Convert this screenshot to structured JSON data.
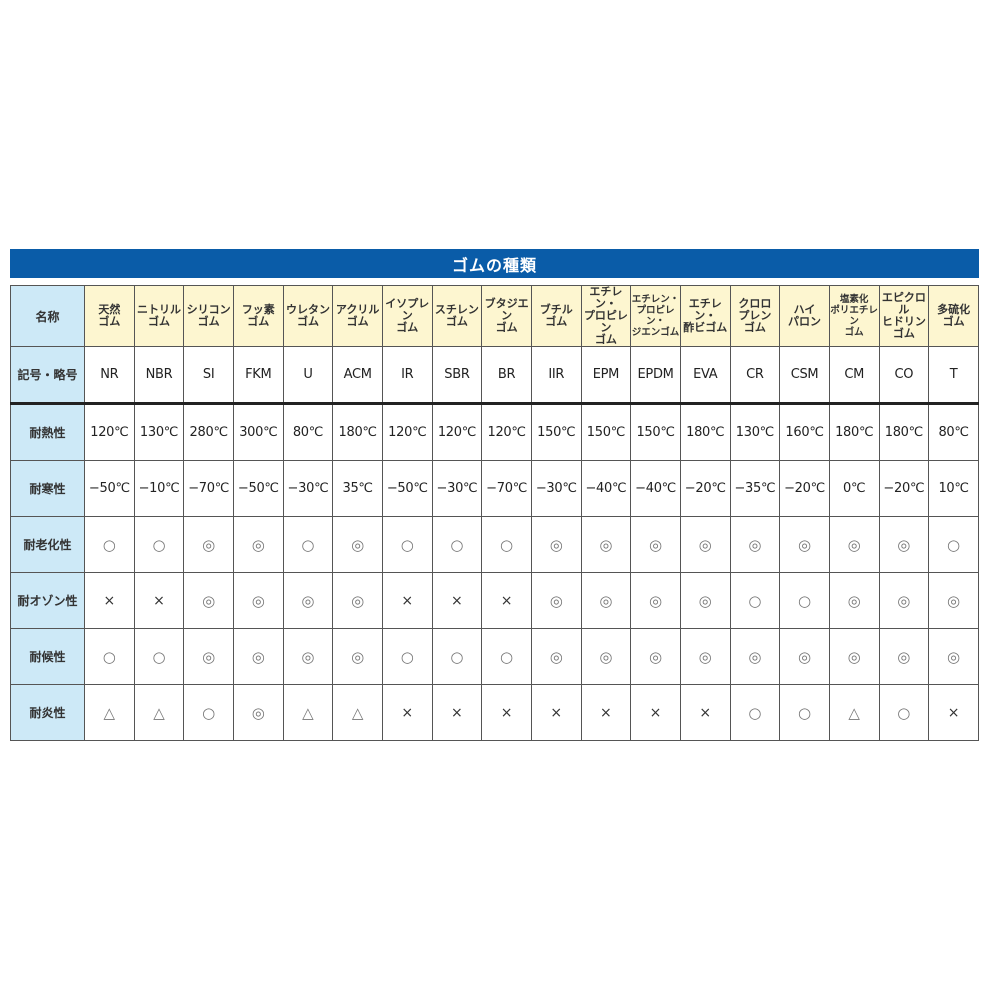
{
  "title": "ゴムの種類",
  "colors": {
    "title_bar": "#0a5ca8",
    "label_bg": "#cde9f7",
    "header_bg": "#fdf6d0"
  },
  "table": {
    "rows": [
      {
        "label": "名称",
        "type": "names",
        "values": [
          "天然\nゴム",
          "ニトリル\nゴム",
          "シリコン\nゴム",
          "フッ素\nゴム",
          "ウレタン\nゴム",
          "アクリル\nゴム",
          "イソプレン\nゴム",
          "スチレン\nゴム",
          "ブタジエン\nゴム",
          "ブチル\nゴム",
          "エチレン・\nプロピレン\nゴム",
          "エチレン・\nプロピレン・\nジエンゴム",
          "エチレン・\n酢ビゴム",
          "クロロ\nプレン\nゴム",
          "ハイ\nパロン",
          "塩素化\nポリエチレン\nゴム",
          "エピクロル\nヒドリン\nゴム",
          "多硫化\nゴム"
        ]
      },
      {
        "label": "記号・略号",
        "type": "val",
        "values": [
          "NR",
          "NBR",
          "SI",
          "FKM",
          "U",
          "ACM",
          "IR",
          "SBR",
          "BR",
          "IIR",
          "EPM",
          "EPDM",
          "EVA",
          "CR",
          "CSM",
          "CM",
          "CO",
          "T"
        ]
      },
      {
        "label": "耐熱性",
        "type": "val",
        "values": [
          "120℃",
          "130℃",
          "280℃",
          "300℃",
          "80℃",
          "180℃",
          "120℃",
          "120℃",
          "120℃",
          "150℃",
          "150℃",
          "150℃",
          "180℃",
          "130℃",
          "160℃",
          "180℃",
          "180℃",
          "80℃"
        ]
      },
      {
        "label": "耐寒性",
        "type": "val",
        "values": [
          "−50℃",
          "−10℃",
          "−70℃",
          "−50℃",
          "−30℃",
          "35℃",
          "−50℃",
          "−30℃",
          "−70℃",
          "−30℃",
          "−40℃",
          "−40℃",
          "−20℃",
          "−35℃",
          "−20℃",
          "0℃",
          "−20℃",
          "10℃"
        ]
      },
      {
        "label": "耐老化性",
        "type": "sym",
        "values": [
          "○",
          "○",
          "◎",
          "◎",
          "○",
          "◎",
          "○",
          "○",
          "○",
          "◎",
          "◎",
          "◎",
          "◎",
          "◎",
          "◎",
          "◎",
          "◎",
          "○"
        ]
      },
      {
        "label": "耐オゾン性",
        "type": "sym",
        "values": [
          "×",
          "×",
          "◎",
          "◎",
          "◎",
          "◎",
          "×",
          "×",
          "×",
          "◎",
          "◎",
          "◎",
          "◎",
          "○",
          "○",
          "◎",
          "◎",
          "◎"
        ]
      },
      {
        "label": "耐候性",
        "type": "sym",
        "values": [
          "○",
          "○",
          "◎",
          "◎",
          "◎",
          "◎",
          "○",
          "○",
          "○",
          "◎",
          "◎",
          "◎",
          "◎",
          "◎",
          "◎",
          "◎",
          "◎",
          "◎"
        ]
      },
      {
        "label": "耐炎性",
        "type": "sym",
        "values": [
          "△",
          "△",
          "○",
          "◎",
          "△",
          "△",
          "×",
          "×",
          "×",
          "×",
          "×",
          "×",
          "×",
          "○",
          "○",
          "△",
          "○",
          "×"
        ]
      }
    ]
  }
}
